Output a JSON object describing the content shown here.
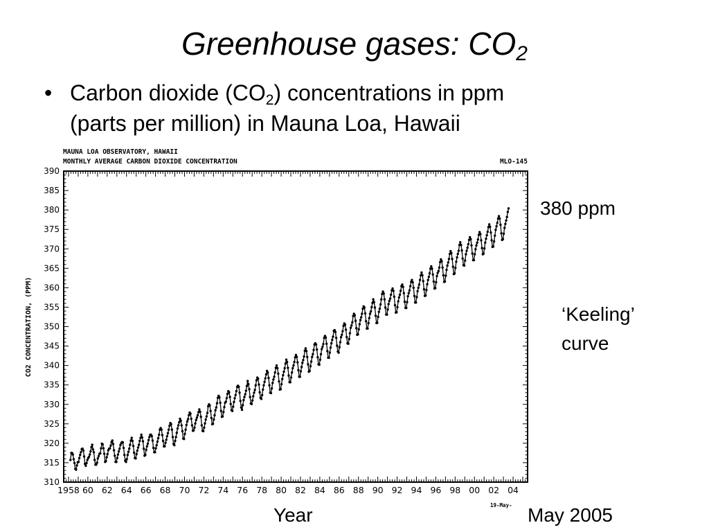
{
  "slide": {
    "title_main": "Greenhouse gases: CO",
    "title_sub": "2",
    "bullet": {
      "symbol": "•",
      "line1_part1": "Carbon dioxide (CO",
      "line1_sub": "2",
      "line1_part2": ") concentrations in ppm",
      "line2": "(parts per million) in Mauna Loa, Hawaii"
    },
    "annotations": {
      "ppm_label": "380 ppm",
      "keeling_line1": "‘Keeling’",
      "keeling_line2": "curve",
      "year_label": "Year",
      "date_label": "May 2005"
    }
  },
  "chart_data": {
    "type": "line",
    "title": "MAUNA LOA OBSERVATORY, HAWAII",
    "subtitle": "MONTHLY AVERAGE CARBON DIOXIDE CONCENTRATION",
    "id_label": "MLO-145",
    "date_stamp": "19-May-",
    "xlabel": "",
    "ylabel": "CO2 CONCENTRATION, (PPM)",
    "xlim": [
      1957.5,
      2005.5
    ],
    "ylim": [
      310,
      390
    ],
    "y_ticks": [
      310,
      315,
      320,
      325,
      330,
      335,
      340,
      345,
      350,
      355,
      360,
      365,
      370,
      375,
      380,
      385,
      390
    ],
    "x_ticks": [
      {
        "year": 1958,
        "label": "1958"
      },
      {
        "year": 1960,
        "label": "60"
      },
      {
        "year": 1962,
        "label": "62"
      },
      {
        "year": 1964,
        "label": "64"
      },
      {
        "year": 1966,
        "label": "66"
      },
      {
        "year": 1968,
        "label": "68"
      },
      {
        "year": 1970,
        "label": "70"
      },
      {
        "year": 1972,
        "label": "72"
      },
      {
        "year": 1974,
        "label": "74"
      },
      {
        "year": 1976,
        "label": "76"
      },
      {
        "year": 1978,
        "label": "78"
      },
      {
        "year": 1980,
        "label": "80"
      },
      {
        "year": 1982,
        "label": "82"
      },
      {
        "year": 1984,
        "label": "84"
      },
      {
        "year": 1986,
        "label": "86"
      },
      {
        "year": 1988,
        "label": "88"
      },
      {
        "year": 1990,
        "label": "90"
      },
      {
        "year": 1992,
        "label": "92"
      },
      {
        "year": 1994,
        "label": "94"
      },
      {
        "year": 1996,
        "label": "96"
      },
      {
        "year": 1998,
        "label": "98"
      },
      {
        "year": 2000,
        "label": "00"
      },
      {
        "year": 2002,
        "label": "02"
      },
      {
        "year": 2004,
        "label": "04"
      }
    ],
    "grid": false,
    "legend": "none",
    "series": [
      {
        "start_year": 1958.2,
        "step": 0.08333,
        "values": [
          315.7,
          317.5,
          317.5,
          317.1,
          315.9,
          314.9,
          313.4,
          313.2,
          314.3,
          315.1,
          315.2,
          316.2,
          317.0,
          317.7,
          318.5,
          318.6,
          318.1,
          316.6,
          314.7,
          314.2,
          314.9,
          315.7,
          316.2,
          316.5,
          317.1,
          317.9,
          319.0,
          319.6,
          318.4,
          317.7,
          315.7,
          314.5,
          314.5,
          315.0,
          316.1,
          316.7,
          317.3,
          317.4,
          318.7,
          319.9,
          319.7,
          318.7,
          317.3,
          315.2,
          315.4,
          316.4,
          317.2,
          318.2,
          318.6,
          318.7,
          319.4,
          320.3,
          320.7,
          319.8,
          318.2,
          316.8,
          315.2,
          315.2,
          316.2,
          317.1,
          317.9,
          318.6,
          319.5,
          320.0,
          320.3,
          320.2,
          318.8,
          317.0,
          315.5,
          315.2,
          315.9,
          317.0,
          317.8,
          318.6,
          319.6,
          320.7,
          321.4,
          320.6,
          319.3,
          317.6,
          316.2,
          316.1,
          317.2,
          318.1,
          318.9,
          319.6,
          320.6,
          321.4,
          322.2,
          321.5,
          320.5,
          318.6,
          316.8,
          317.0,
          318.3,
          319.2,
          319.9,
          320.8,
          321.6,
          322.2,
          322.2,
          321.8,
          320.7,
          318.8,
          317.7,
          317.7,
          318.7,
          319.5,
          320.4,
          321.3,
          322.2,
          323.5,
          323.9,
          323.5,
          322.1,
          320.6,
          319.2,
          319.2,
          320.1,
          320.9,
          321.8,
          322.6,
          323.5,
          324.5,
          325.2,
          324.9,
          323.5,
          321.6,
          319.8,
          319.5,
          320.6,
          321.6,
          322.7,
          323.8,
          324.6,
          325.4,
          326.3,
          325.8,
          324.6,
          323.1,
          321.2,
          321.1,
          322.4,
          323.5,
          324.7,
          325.6,
          326.2,
          327.2,
          327.9,
          327.6,
          326.3,
          324.6,
          323.2,
          323.3,
          324.0,
          325.1,
          326.0,
          326.6,
          327.2,
          328.0,
          328.7,
          328.1,
          326.8,
          324.6,
          323.2,
          323.1,
          324.0,
          325.1,
          326.1,
          326.9,
          327.8,
          329.5,
          330.0,
          329.7,
          328.3,
          326.5,
          324.9,
          325.0,
          326.1,
          327.2,
          328.5,
          329.2,
          330.3,
          331.7,
          332.2,
          331.8,
          330.4,
          328.3,
          326.8,
          326.9,
          328.0,
          329.3,
          330.4,
          330.7,
          331.6,
          332.7,
          333.4,
          333.1,
          331.9,
          330.1,
          328.5,
          328.3,
          329.4,
          330.6,
          331.6,
          332.4,
          333.4,
          334.5,
          334.8,
          334.5,
          333.0,
          330.9,
          329.2,
          328.6,
          329.8,
          331.1,
          331.9,
          332.6,
          333.5,
          334.7,
          336.0,
          335.2,
          333.9,
          331.9,
          330.2,
          330.1,
          331.0,
          332.1,
          333.0,
          333.7,
          334.9,
          336.2,
          336.9,
          336.6,
          335.1,
          333.1,
          331.7,
          331.4,
          332.4,
          333.8,
          334.9,
          335.8,
          336.7,
          337.7,
          338.6,
          338.2,
          336.8,
          334.9,
          333.0,
          332.9,
          334.1,
          335.5,
          336.4,
          337.1,
          338.2,
          339.4,
          340.0,
          339.3,
          337.9,
          335.9,
          333.8,
          333.9,
          335.2,
          336.5,
          337.5,
          338.4,
          339.3,
          340.5,
          341.5,
          340.9,
          339.4,
          337.4,
          335.7,
          335.7,
          336.9,
          338.2,
          339.3,
          340.0,
          340.9,
          342.1,
          342.7,
          342.2,
          340.8,
          338.8,
          337.1,
          337.1,
          338.5,
          339.6,
          340.7,
          341.4,
          342.3,
          343.8,
          344.4,
          343.7,
          342.2,
          340.3,
          338.4,
          338.6,
          339.8,
          341.0,
          342.2,
          342.9,
          344.0,
          345.4,
          345.7,
          345.4,
          344.1,
          342.1,
          340.3,
          340.2,
          341.5,
          342.9,
          344.2,
          344.8,
          345.5,
          347.1,
          347.6,
          347.2,
          345.6,
          343.7,
          342.0,
          342.0,
          343.3,
          344.6,
          345.7,
          346.6,
          347.4,
          348.9,
          349.1,
          348.6,
          347.1,
          345.1,
          343.6,
          343.3,
          344.7,
          346.0,
          347.3,
          347.9,
          348.8,
          350.2,
          350.8,
          350.5,
          349.2,
          347.3,
          345.7,
          345.6,
          346.8,
          348.3,
          349.7,
          350.3,
          351.1,
          352.7,
          353.3,
          352.9,
          351.5,
          349.6,
          347.9,
          348.0,
          349.3,
          350.6,
          351.7,
          352.4,
          353.3,
          354.6,
          355.2,
          354.9,
          353.4,
          351.4,
          349.5,
          349.5,
          350.9,
          352.2,
          353.3,
          353.9,
          355.0,
          356.1,
          357.0,
          356.3,
          354.9,
          352.8,
          350.9,
          351.0,
          352.5,
          353.8,
          354.6,
          355.7,
          357.0,
          358.4,
          359.0,
          358.5,
          357.0,
          354.9,
          353.1,
          353.1,
          354.4,
          355.8,
          356.6,
          357.2,
          358.2,
          359.3,
          359.8,
          359.2,
          357.7,
          355.5,
          353.6,
          353.7,
          355.0,
          356.5,
          357.5,
          358.2,
          359.2,
          360.4,
          360.8,
          360.2,
          358.6,
          356.4,
          354.8,
          354.8,
          356.3,
          357.8,
          358.6,
          359.3,
          360.4,
          361.5,
          362.0,
          361.4,
          360.0,
          357.9,
          356.2,
          356.2,
          357.6,
          359.1,
          360.0,
          360.8,
          362.0,
          363.2,
          363.9,
          363.2,
          361.7,
          359.6,
          357.9,
          358.0,
          359.4,
          360.9,
          362.0,
          362.8,
          363.7,
          364.9,
          365.5,
          364.9,
          363.4,
          361.6,
          359.8,
          359.9,
          361.4,
          363.0,
          363.8,
          364.3,
          365.2,
          366.6,
          367.3,
          366.8,
          365.2,
          363.2,
          361.5,
          361.6,
          363.1,
          364.6,
          365.7,
          366.5,
          367.4,
          368.7,
          369.4,
          368.9,
          367.4,
          365.4,
          363.5,
          363.7,
          365.1,
          366.7,
          367.8,
          368.7,
          369.5,
          371.0,
          371.7,
          371.0,
          369.6,
          367.5,
          365.8,
          365.7,
          367.0,
          368.6,
          369.5,
          370.3,
          371.2,
          372.3,
          373.0,
          372.5,
          370.9,
          368.8,
          367.1,
          367.1,
          368.6,
          369.9,
          370.9,
          371.6,
          372.4,
          373.6,
          374.3,
          373.8,
          372.2,
          370.2,
          368.6,
          368.8,
          370.1,
          371.6,
          372.6,
          373.5,
          374.4,
          375.6,
          376.3,
          375.7,
          374.2,
          372.2,
          370.5,
          370.6,
          371.9,
          373.4,
          374.9,
          375.8,
          376.7,
          377.8,
          378.4,
          377.8,
          376.2,
          374.0,
          372.3,
          372.5,
          373.9,
          375.4,
          376.4,
          377.3,
          378.2,
          379.5,
          380.4
        ]
      }
    ]
  }
}
